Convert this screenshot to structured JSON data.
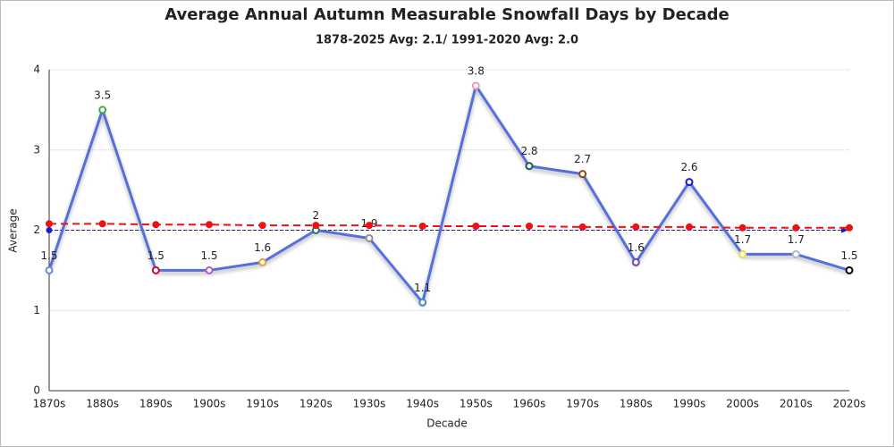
{
  "chart_data": {
    "type": "line",
    "title": "Average Annual Autumn Measurable Snowfall Days by Decade",
    "subtitle": "1878-2025 Avg: 2.1/ 1991-2020 Avg: 2.0",
    "x_label": "Decade",
    "y_label": "Average",
    "categories": [
      "1870s",
      "1880s",
      "1890s",
      "1900s",
      "1910s",
      "1920s",
      "1930s",
      "1940s",
      "1950s",
      "1960s",
      "1970s",
      "1980s",
      "1990s",
      "2000s",
      "2010s",
      "2020s"
    ],
    "series": [
      {
        "color": "#5470dc",
        "values": [
          1.5,
          3.5,
          1.5,
          1.5,
          1.6,
          2,
          1.9,
          1.1,
          3.8,
          2.8,
          2.7,
          1.6,
          2.6,
          1.7,
          1.7,
          1.5
        ],
        "marker_colors": [
          "#6a8ad8",
          "#3cb043",
          "#c0102a",
          "#b05cc8",
          "#e8a030",
          "#1a7a6a",
          "#909090",
          "#4a8ab8",
          "#e8a0b0",
          "#1a5a5a",
          "#8a4a1a",
          "#6a4ab8",
          "#1a1acc",
          "#e8e040",
          "#b8b8c8",
          "#000000"
        ],
        "data_labels": true
      },
      {
        "color": "#ee1111",
        "dashed": true,
        "values": [
          2.08,
          2.08,
          2.07,
          2.07,
          2.06,
          2.06,
          2.06,
          2.05,
          2.05,
          2.05,
          2.04,
          2.04,
          2.04,
          2.03,
          2.03,
          2.03
        ]
      }
    ],
    "reference_line": {
      "value": 2.0,
      "color": "#1a1acc"
    },
    "ylim": [
      0,
      4
    ],
    "yticks": [
      0,
      1,
      2,
      3,
      4
    ],
    "grid": true
  }
}
